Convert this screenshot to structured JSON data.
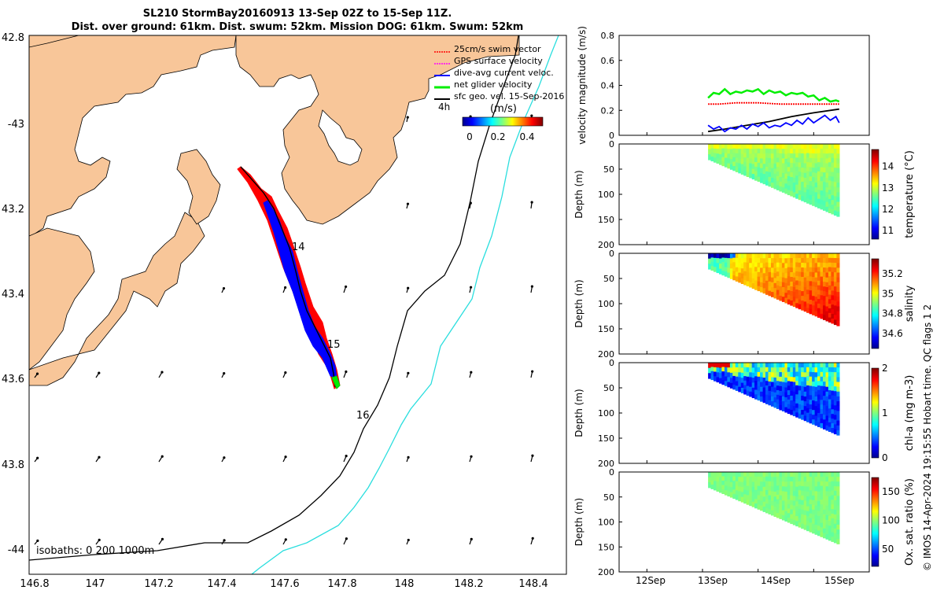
{
  "title": {
    "line1": "SL210 StormBay20160913 13-Sep 02Z to 15-Sep 11Z.",
    "line2": "Dist. over ground: 61km. Dist. swum: 52km. Mission DOG: 61km. Swum: 52km"
  },
  "legend": {
    "items": [
      {
        "label": "25cm/s swim vector",
        "color": "#ff0000"
      },
      {
        "label": "GPS surface velocity",
        "color": "#ff00ff"
      },
      {
        "label": "dive-avg current veloc.",
        "color": "#0000ff"
      },
      {
        "label": "net glider velocity",
        "color": "#00ee00"
      },
      {
        "label": "sfc geo. vel. 15-Sep-2016",
        "color": "#000000"
      }
    ],
    "time_step": "4h",
    "colorbar_label": "(m/s)",
    "colorbar_ticks": [
      "0",
      "0.2",
      "0.4"
    ]
  },
  "map": {
    "lat_ticks": [
      "42.8",
      "-43",
      "43.2",
      "43.4",
      "43.6",
      "43.8",
      "-44"
    ],
    "lon_ticks": [
      "146.8",
      "147",
      "147.2",
      "147.4",
      "147.6",
      "147.8",
      "148",
      "148.2",
      "148.4"
    ],
    "isobaths_label": "isobaths: 0   200  1000m",
    "day_labels": [
      "14",
      "15",
      "16"
    ],
    "land_color": "#f8c699",
    "track_color": "#ff0000",
    "current_color": "#0000ff"
  },
  "time_axis": {
    "ticks": [
      "12Sep",
      "13Sep",
      "14Sep",
      "15Sep"
    ]
  },
  "chart_data": [
    {
      "type": "line",
      "title": "",
      "ylabel": "velocity magnitude (m/s)",
      "ylim": [
        0,
        0.8
      ],
      "yticks": [
        "0",
        "0.2",
        "0.4",
        "0.6",
        "0.8"
      ],
      "xlim": [
        11.5,
        16.0
      ],
      "series": [
        {
          "name": "net glider velocity",
          "color": "#00ee00",
          "x": [
            13.1,
            13.15,
            13.2,
            13.3,
            13.4,
            13.5,
            13.6,
            13.7,
            13.8,
            13.9,
            14.0,
            14.1,
            14.2,
            14.3,
            14.4,
            14.5,
            14.6,
            14.7,
            14.8,
            14.9,
            15.0,
            15.1,
            15.2,
            15.3,
            15.4,
            15.46
          ],
          "values": [
            0.3,
            0.32,
            0.34,
            0.33,
            0.37,
            0.33,
            0.35,
            0.34,
            0.36,
            0.35,
            0.37,
            0.33,
            0.36,
            0.34,
            0.35,
            0.32,
            0.34,
            0.33,
            0.34,
            0.31,
            0.32,
            0.28,
            0.3,
            0.27,
            0.28,
            0.27
          ]
        },
        {
          "name": "25cm/s swim vector",
          "color": "#ff0000",
          "x": [
            13.1,
            13.3,
            13.6,
            14.0,
            14.4,
            14.8,
            15.2,
            15.46
          ],
          "values": [
            0.25,
            0.25,
            0.26,
            0.26,
            0.25,
            0.25,
            0.25,
            0.25
          ]
        },
        {
          "name": "sfc geo. vel.",
          "color": "#000000",
          "x": [
            13.1,
            13.4,
            13.8,
            14.2,
            14.6,
            15.0,
            15.46
          ],
          "values": [
            0.03,
            0.05,
            0.08,
            0.11,
            0.15,
            0.18,
            0.21
          ]
        },
        {
          "name": "dive-avg current veloc.",
          "color": "#0000ff",
          "x": [
            13.1,
            13.2,
            13.3,
            13.4,
            13.5,
            13.6,
            13.7,
            13.8,
            13.9,
            14.0,
            14.1,
            14.2,
            14.3,
            14.4,
            14.5,
            14.6,
            14.7,
            14.8,
            14.9,
            15.0,
            15.1,
            15.2,
            15.3,
            15.4,
            15.46
          ],
          "values": [
            0.08,
            0.05,
            0.07,
            0.03,
            0.06,
            0.05,
            0.08,
            0.05,
            0.09,
            0.07,
            0.1,
            0.06,
            0.08,
            0.07,
            0.1,
            0.08,
            0.12,
            0.09,
            0.14,
            0.1,
            0.13,
            0.16,
            0.12,
            0.15,
            0.1
          ]
        }
      ]
    },
    {
      "type": "heatmap",
      "ylabel": "Depth (m)",
      "ylim": [
        0,
        200
      ],
      "yticks": [
        "0",
        "50",
        "100",
        "150",
        "200"
      ],
      "clabel": "temperature (°C)",
      "cticks": [
        "11",
        "12",
        "13",
        "14"
      ],
      "crange": [
        10.6,
        14.8
      ],
      "bottom_depth": {
        "x": [
          13.1,
          15.46
        ],
        "values": [
          30,
          145
        ]
      }
    },
    {
      "type": "heatmap",
      "ylabel": "Depth (m)",
      "ylim": [
        0,
        200
      ],
      "yticks": [
        "0",
        "50",
        "100",
        "150",
        "200"
      ],
      "clabel": "salinity",
      "cticks": [
        "34.6",
        "34.8",
        "35",
        "35.2"
      ],
      "crange": [
        34.45,
        35.35
      ],
      "bottom_depth": {
        "x": [
          13.1,
          15.46
        ],
        "values": [
          30,
          145
        ]
      }
    },
    {
      "type": "heatmap",
      "ylabel": "Depth (m)",
      "ylim": [
        0,
        200
      ],
      "yticks": [
        "0",
        "50",
        "100",
        "150",
        "200"
      ],
      "clabel": "chl-a (mg m-3)",
      "cticks": [
        "0",
        "1",
        "2"
      ],
      "crange": [
        0,
        2
      ],
      "bottom_depth": {
        "x": [
          13.1,
          15.46
        ],
        "values": [
          30,
          145
        ]
      }
    },
    {
      "type": "heatmap",
      "ylabel": "Depth (m)",
      "ylim": [
        0,
        200
      ],
      "yticks": [
        "0",
        "50",
        "100",
        "150",
        "200"
      ],
      "clabel": "Ox. sat. ratio (%)",
      "cticks": [
        "50",
        "100",
        "150"
      ],
      "crange": [
        20,
        175
      ],
      "bottom_depth": {
        "x": [
          13.1,
          15.46
        ],
        "values": [
          30,
          145
        ]
      }
    }
  ],
  "side_note": "© IMOS 14-Apr-2024 19:15:55 Hobart time. QC flags 1  2"
}
